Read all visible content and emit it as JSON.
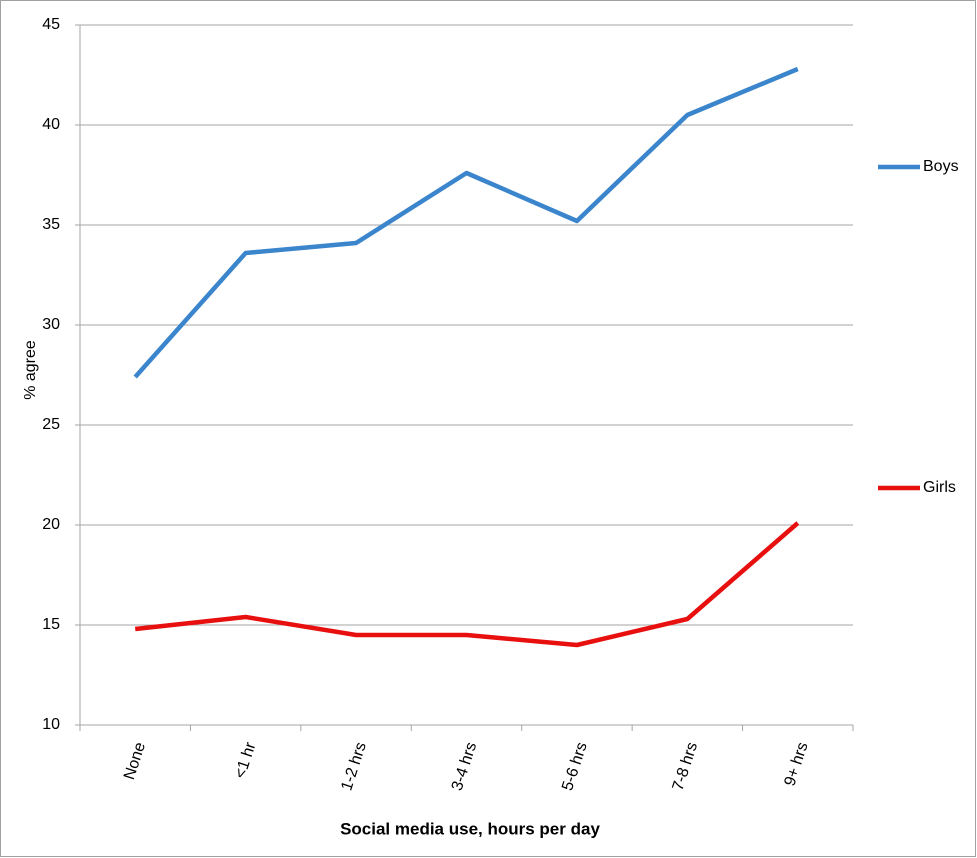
{
  "chart_data": {
    "type": "line",
    "x_label": "Social media use, hours per day",
    "y_label": "% agree",
    "categories": [
      "None",
      "<1 hr",
      "1-2 hrs",
      "3-4 hrs",
      "5-6 hrs",
      "7-8 hrs",
      "9+ hrs"
    ],
    "series": [
      {
        "name": "Boys",
        "color": "#3a85cc",
        "values": [
          27.4,
          33.6,
          34.1,
          37.6,
          35.2,
          40.5,
          42.8
        ]
      },
      {
        "name": "Girls",
        "color": "#e8100f",
        "values": [
          14.8,
          15.4,
          14.5,
          14.5,
          14.0,
          15.3,
          20.1
        ]
      }
    ],
    "ylim": [
      10,
      45
    ],
    "yticks": [
      10,
      15,
      20,
      25,
      30,
      35,
      40,
      45
    ],
    "grid": true,
    "legend": "right"
  }
}
